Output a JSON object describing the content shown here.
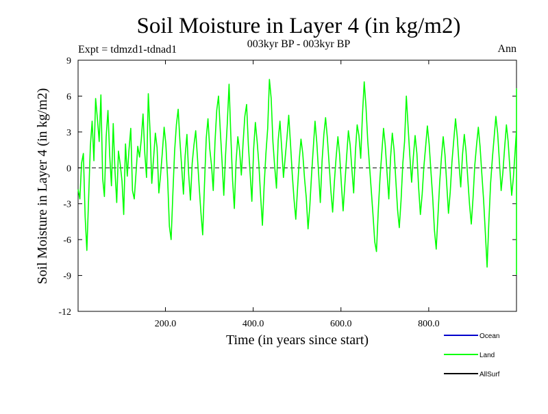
{
  "chart_data": {
    "type": "line",
    "title": "Soil Moisture in Layer 4 (in kg/m2)",
    "subtitle": "003kyr BP - 003kyr BP",
    "experiment_label": "Expt = tdmzd1-tdnad1",
    "season_label": "Ann",
    "xlabel": "Time (in years since start)",
    "ylabel": "Soil Moisture in Layer 4 (in kg/m2)",
    "xlim": [
      1,
      1000
    ],
    "ylim": [
      -12,
      9
    ],
    "x_ticks": [
      200,
      400,
      600,
      800
    ],
    "x_tick_labels": [
      "200.0",
      "400.0",
      "600.0",
      "800.0"
    ],
    "y_ticks": [
      -12,
      -9,
      -6,
      -3,
      0,
      3,
      6,
      9
    ],
    "y_tick_labels": [
      "-12",
      "-9",
      "-6",
      "-3",
      "0",
      "3",
      "6",
      "9"
    ],
    "zero_line": {
      "value": 0,
      "style": "dashed",
      "color": "#000000"
    },
    "legend": [
      {
        "name": "Ocean",
        "color": "#0000cc"
      },
      {
        "name": "Land",
        "color": "#00ff00"
      },
      {
        "name": "AllSurf",
        "color": "#000000"
      }
    ],
    "series": [
      {
        "name": "Land",
        "color": "#00ff00",
        "x_start": 1,
        "x_step": 4,
        "values": [
          -1.8,
          -2.6,
          0.4,
          1.2,
          -4.1,
          -6.9,
          -2.5,
          1.8,
          3.9,
          0.6,
          5.8,
          4.1,
          2.2,
          6.1,
          -0.9,
          -2.4,
          2.6,
          4.8,
          1.1,
          -1.5,
          3.7,
          -0.2,
          -2.9,
          1.4,
          0.3,
          -1.1,
          -3.9,
          2.0,
          -0.7,
          1.5,
          3.3,
          -1.9,
          -2.6,
          -0.4,
          1.8,
          0.9,
          2.4,
          4.5,
          1.2,
          -0.8,
          6.2,
          3.0,
          -1.3,
          0.8,
          2.9,
          1.7,
          -2.1,
          -0.6,
          1.3,
          3.4,
          2.0,
          -0.9,
          -4.9,
          -6.0,
          -2.1,
          1.4,
          3.6,
          4.9,
          2.3,
          0.1,
          -2.2,
          1.0,
          2.8,
          -0.5,
          -2.7,
          0.4,
          1.9,
          3.1,
          0.8,
          -1.6,
          -3.8,
          -5.6,
          -1.4,
          2.5,
          4.1,
          1.6,
          0.2,
          -1.9,
          2.2,
          4.8,
          6.0,
          3.1,
          0.6,
          -2.3,
          1.1,
          3.7,
          7.0,
          2.8,
          -1.0,
          -3.4,
          0.5,
          2.6,
          1.4,
          -0.6,
          2.1,
          4.3,
          5.3,
          1.9,
          -0.4,
          -2.8,
          1.6,
          3.8,
          2.2,
          0.3,
          -2.4,
          -4.8,
          -1.5,
          1.2,
          3.3,
          7.4,
          5.8,
          2.2,
          0.1,
          -1.7,
          2.3,
          3.9,
          1.6,
          -0.8,
          0.9,
          2.5,
          4.4,
          2.0,
          -0.5,
          -2.6,
          -4.3,
          -1.8,
          0.7,
          2.4,
          1.2,
          -0.9,
          -2.5,
          -5.1,
          -3.2,
          -0.6,
          1.7,
          3.9,
          2.1,
          -0.4,
          -2.9,
          0.6,
          2.8,
          4.2,
          2.5,
          0.4,
          -1.9,
          -3.7,
          -1.2,
          0.9,
          2.6,
          1.1,
          -1.4,
          -3.6,
          -1.3,
          1.0,
          3.1,
          1.9,
          -0.2,
          -2.1,
          1.4,
          3.6,
          2.7,
          0.8,
          4.4,
          7.2,
          5.1,
          2.3,
          0.2,
          -1.8,
          -3.9,
          -6.2,
          -7.0,
          -3.6,
          -0.8,
          1.2,
          3.3,
          1.9,
          -0.4,
          -2.6,
          0.8,
          2.9,
          1.5,
          -1.0,
          -3.5,
          -5.0,
          -2.7,
          0.4,
          2.2,
          6.0,
          3.4,
          1.0,
          -1.2,
          0.9,
          2.7,
          1.2,
          -1.6,
          -3.9,
          -2.2,
          0.1,
          1.8,
          3.5,
          2.0,
          -0.3,
          -2.4,
          -5.2,
          -6.8,
          -4.1,
          -1.2,
          0.9,
          2.6,
          1.1,
          -1.3,
          -3.8,
          -2.0,
          0.5,
          2.3,
          4.1,
          2.6,
          0.3,
          -1.6,
          1.1,
          2.8,
          1.4,
          -0.9,
          -3.1,
          -4.7,
          -2.5,
          0.2,
          1.9,
          3.4,
          1.8,
          -0.5,
          -2.7,
          -5.4,
          -8.3,
          -4.6,
          -1.3,
          0.8,
          2.5,
          4.3,
          2.9,
          0.6,
          -1.9,
          -0.4,
          1.7,
          3.6,
          2.2,
          -0.1,
          -2.3,
          -0.8,
          1.5,
          3.2,
          4.6,
          2.7,
          0.5,
          -1.8,
          -3.9,
          -2.1,
          0.6,
          2.4,
          3.9,
          1.6,
          -0.7,
          1.4,
          3.5,
          5.3,
          3.1,
          0.9,
          -1.4,
          -3.6,
          -5.2,
          -2.8,
          -0.3,
          1.8,
          3.7,
          2.3,
          0.4,
          -1.9,
          0.7,
          2.5,
          1.1,
          -1.2,
          -3.5,
          -6.1,
          -7.4,
          -3.9,
          -0.9,
          1.4,
          3.6,
          6.2,
          4.0,
          1.7,
          -0.6,
          -2.9,
          -1.1,
          1.2,
          3.4,
          2.0,
          -0.3,
          -2.5,
          -4.4,
          -2.0,
          0.5,
          2.3,
          4.8,
          2.9,
          0.7,
          -1.6,
          -3.8,
          -6.3,
          -3.2,
          -0.4,
          1.9,
          3.8,
          2.1,
          -0.2,
          -2.4,
          0.9,
          2.7,
          4.9,
          2.6,
          0.3,
          -2.1,
          -4.2,
          -6.4,
          -3.3,
          -0.5,
          1.6,
          3.9,
          5.7,
          3.2,
          0.8,
          -1.5,
          1.3,
          3.6,
          6.6,
          4.1,
          1.5,
          -1.0,
          -3.3,
          -1.4,
          0.8,
          2.6,
          1.2,
          -1.1,
          -3.4,
          -1.6,
          0.7,
          2.5,
          4.0,
          2.2,
          -0.1,
          -2.3,
          -4.6,
          -2.3,
          0.2,
          2.0,
          3.7,
          1.9,
          -0.6,
          -2.8,
          -1.0,
          1.3,
          3.2,
          5.4,
          3.0,
          0.6,
          -1.7,
          -3.9,
          -2.0,
          0.4,
          2.2,
          6.3,
          3.5,
          1.0,
          -1.5,
          -3.7,
          -2.1,
          0.3,
          2.1,
          3.8,
          2.2,
          -0.2,
          -2.5,
          -4.9,
          -6.5,
          -3.4,
          -0.6,
          1.5,
          3.4,
          5.5,
          3.1,
          0.7,
          -1.8,
          -4.0,
          -5.3,
          -2.6,
          0.1,
          1.9,
          3.6,
          2.3,
          0.2,
          -2.0,
          -4.3,
          -6.2,
          -8.9,
          -5.1,
          -1.8,
          0.6,
          2.4,
          1.1,
          -1.3,
          -3.6,
          -5.8,
          -2.9
        ]
      },
      {
        "name": "Ocean",
        "color": "#0000cc",
        "values": []
      },
      {
        "name": "AllSurf",
        "color": "#000000",
        "values": []
      }
    ]
  }
}
